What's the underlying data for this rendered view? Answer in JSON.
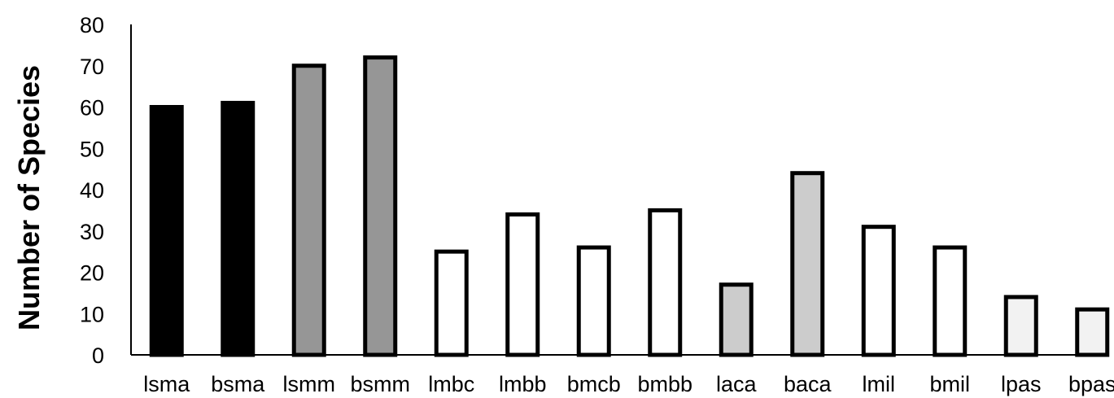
{
  "chart_data": {
    "type": "bar",
    "title": "",
    "xlabel": "",
    "ylabel": "Number of Species",
    "ylim": [
      0,
      80
    ],
    "yticks": [
      0,
      10,
      20,
      30,
      40,
      50,
      60,
      70,
      80
    ],
    "grid": false,
    "legend": "none",
    "categories": [
      "lsma",
      "bsma",
      "lsmm",
      "bsmm",
      "lmbc",
      "lmbb",
      "bmcb",
      "bmbb",
      "laca",
      "baca",
      "lmil",
      "bmil",
      "lpas",
      "bpas"
    ],
    "values": [
      60,
      61,
      70,
      72,
      25,
      34,
      26,
      35,
      17,
      44,
      31,
      26,
      14,
      11
    ],
    "bar_fill_colors": [
      "#000000",
      "#000000",
      "#969696",
      "#969696",
      "#ffffff",
      "#ffffff",
      "#ffffff",
      "#ffffff",
      "#cccccc",
      "#cccccc",
      "#ffffff",
      "#ffffff",
      "#f2f2f2",
      "#f2f2f2"
    ],
    "bar_outline_color": "#000000"
  }
}
